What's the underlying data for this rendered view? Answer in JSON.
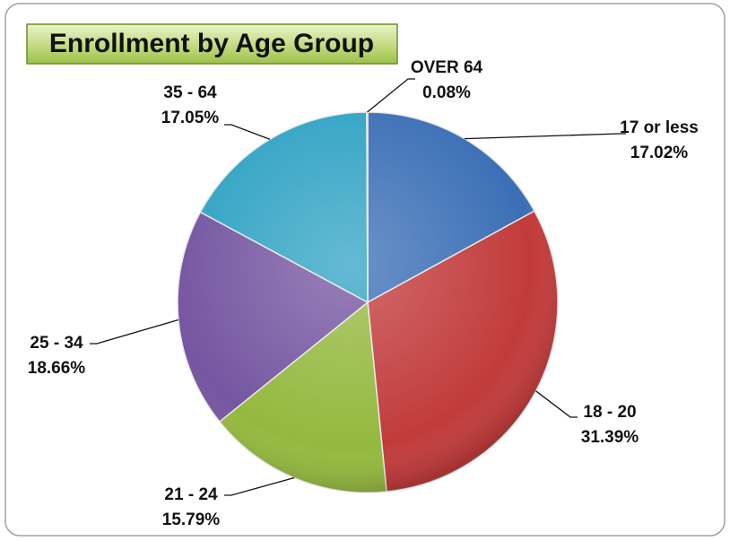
{
  "chart_data": {
    "type": "pie",
    "title": "Enrollment by Age Group",
    "categories": [
      "17 or less",
      "18 - 20",
      "21 - 24",
      "25 - 34",
      "35 - 64",
      "OVER 64"
    ],
    "values": [
      17.02,
      31.39,
      15.79,
      18.66,
      17.05,
      0.08
    ],
    "value_labels": [
      "17.02%",
      "31.39%",
      "15.79%",
      "18.66%",
      "17.05%",
      "0.08%"
    ],
    "colors": [
      "#3b6fb6",
      "#c23b3b",
      "#94b93f",
      "#7556a1",
      "#31a3c4",
      "#f39a3c"
    ]
  }
}
